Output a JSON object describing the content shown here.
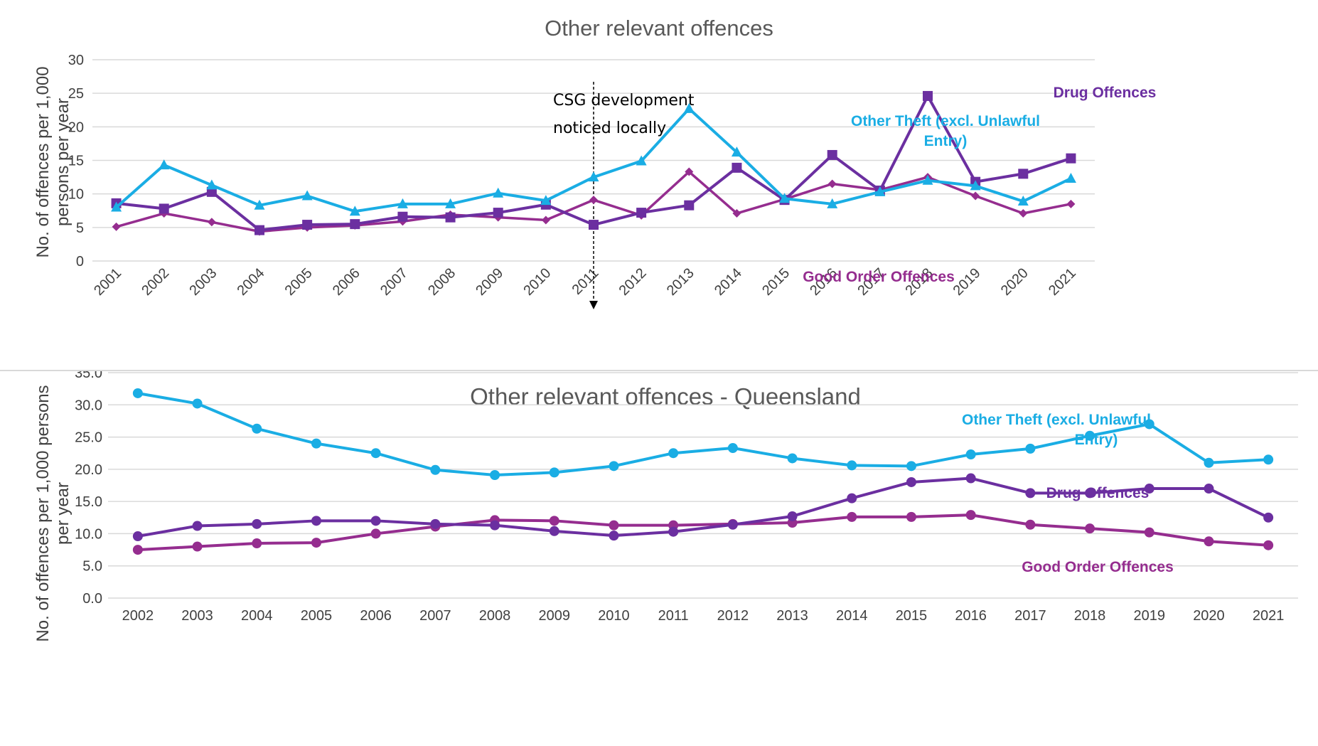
{
  "colors": {
    "other_theft": "#1AADE4",
    "drug": "#6B2FA0",
    "good_order": "#952D8F",
    "grid": "#d9d9d9"
  },
  "chart_data": [
    {
      "type": "line",
      "title": "Other relevant offences",
      "ylabel": "No. of offences per 1,000 persons per year",
      "ylim": [
        0,
        30
      ],
      "yticks": [
        "0",
        "5",
        "10",
        "15",
        "20",
        "25",
        "30"
      ],
      "categories": [
        "2001",
        "2002",
        "2003",
        "2004",
        "2005",
        "2006",
        "2007",
        "2008",
        "2009",
        "2010",
        "2011",
        "2012",
        "2013",
        "2014",
        "2015",
        "2016",
        "2017",
        "2018",
        "2019",
        "2020",
        "2021"
      ],
      "series": [
        {
          "name": "Other Theft (excl. Unlawful Entry)",
          "marker": "triangle",
          "values": [
            8.0,
            14.3,
            11.3,
            8.3,
            9.7,
            7.4,
            8.5,
            8.5,
            10.1,
            9.0,
            12.5,
            14.9,
            22.7,
            16.2,
            9.3,
            8.5,
            10.3,
            12.0,
            11.2,
            8.9,
            12.3
          ]
        },
        {
          "name": "Drug Offences",
          "marker": "square",
          "values": [
            8.6,
            7.8,
            10.3,
            4.6,
            5.4,
            5.5,
            6.6,
            6.5,
            7.2,
            8.4,
            5.4,
            7.2,
            8.3,
            13.9,
            9.1,
            15.8,
            10.5,
            24.6,
            11.8,
            13.0,
            15.3
          ]
        },
        {
          "name": "Good Order Offences",
          "marker": "diamond",
          "values": [
            5.1,
            7.1,
            5.8,
            4.4,
            5.0,
            5.3,
            5.9,
            6.9,
            6.5,
            6.1,
            9.1,
            6.8,
            13.3,
            7.1,
            9.2,
            11.5,
            10.6,
            12.5,
            9.7,
            7.1,
            8.5
          ]
        }
      ],
      "annotation": {
        "text_line1": "CSG   development",
        "text_line2": "noticed locally",
        "x": "2011"
      }
    },
    {
      "type": "line",
      "title": "Other relevant offences - Queensland",
      "ylabel": "No. of offences per 1,000 persons per year",
      "ylim": [
        0,
        35
      ],
      "yticks": [
        "0.0",
        "5.0",
        "10.0",
        "15.0",
        "20.0",
        "25.0",
        "30.0",
        "35.0"
      ],
      "categories": [
        "2002",
        "2003",
        "2004",
        "2005",
        "2006",
        "2007",
        "2008",
        "2009",
        "2010",
        "2011",
        "2012",
        "2013",
        "2014",
        "2015",
        "2016",
        "2017",
        "2018",
        "2019",
        "2020",
        "2021"
      ],
      "series": [
        {
          "name": "Other Theft (excl. Unlawful Entry)",
          "marker": "circle",
          "values": [
            31.8,
            30.2,
            26.3,
            24.0,
            22.5,
            19.9,
            19.1,
            19.5,
            20.5,
            22.5,
            23.3,
            21.7,
            20.6,
            20.5,
            22.3,
            23.2,
            25.2,
            27.0,
            21.0,
            21.5
          ]
        },
        {
          "name": "Drug Offences",
          "marker": "circle",
          "values": [
            9.6,
            11.2,
            11.5,
            12.0,
            12.0,
            11.5,
            11.3,
            10.4,
            9.7,
            10.3,
            11.4,
            12.7,
            15.5,
            18.0,
            18.6,
            16.3,
            16.3,
            17.0,
            17.0,
            12.5
          ]
        },
        {
          "name": "Good Order Offences",
          "marker": "circle",
          "values": [
            7.5,
            8.0,
            8.5,
            8.6,
            10.0,
            11.1,
            12.1,
            12.0,
            11.3,
            11.3,
            11.5,
            11.7,
            12.6,
            12.6,
            12.9,
            11.4,
            10.8,
            10.2,
            8.8,
            8.2
          ]
        }
      ]
    }
  ]
}
